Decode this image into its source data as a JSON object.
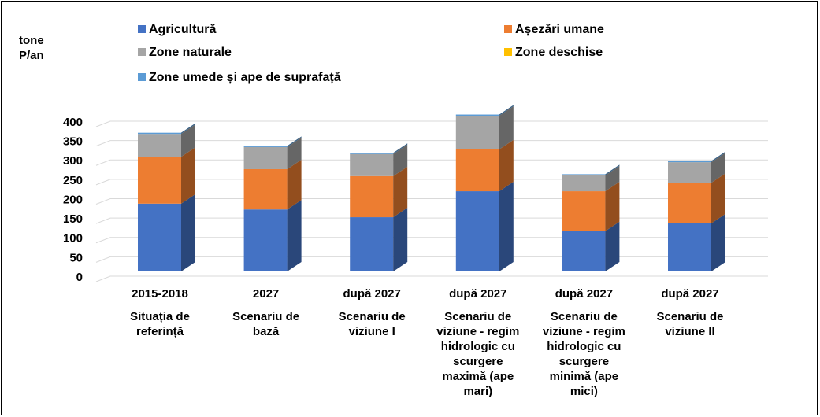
{
  "chart_data": {
    "type": "bar3d_stacked",
    "y_label": "tone P/an",
    "categories": [
      "2015-2018",
      "2027",
      "după 2027",
      "după 2027",
      "după 2027",
      "după 2027"
    ],
    "category_descriptions": [
      "Situația de referință",
      "Scenariu de bază",
      "Scenariu de viziune I",
      "Scenariu de viziune - regim hidrologic cu scurgere maximă (ape mari)",
      "Scenariu de viziune - regim hidrologic cu scurgere minimă (ape mici)",
      "Scenariu de viziune II"
    ],
    "series": [
      {
        "name": "Agricultură",
        "color": "#4472c4",
        "values": [
          175,
          160,
          140,
          207,
          104,
          124
        ]
      },
      {
        "name": "Așezări umane",
        "color": "#ed7d31",
        "values": [
          121,
          104,
          106,
          108,
          103,
          105
        ]
      },
      {
        "name": "Zone naturale",
        "color": "#a5a5a5",
        "values": [
          59,
          57,
          57,
          87,
          41,
          53
        ]
      },
      {
        "name": "Zone deschise",
        "color": "#ffc000",
        "values": [
          0,
          0,
          0,
          0,
          0,
          0
        ]
      },
      {
        "name": "Zone umede și ape de suprafață",
        "color": "#5b9bd5",
        "values": [
          3,
          3,
          3,
          3,
          3,
          3
        ]
      }
    ],
    "ylim": [
      0,
      400
    ],
    "yticks": [
      0,
      50,
      100,
      150,
      200,
      250,
      300,
      350,
      400
    ],
    "grid": true
  }
}
